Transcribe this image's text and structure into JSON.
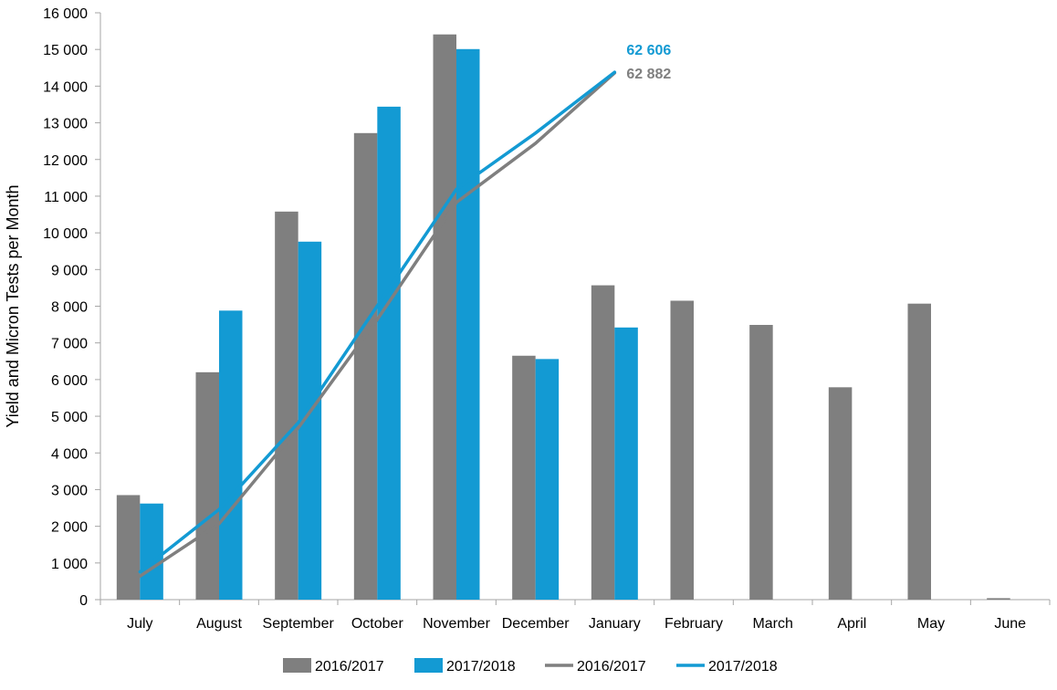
{
  "chart_data": {
    "type": "bar",
    "categories": [
      "July",
      "August",
      "September",
      "October",
      "November",
      "December",
      "January",
      "February",
      "March",
      "April",
      "May",
      "June"
    ],
    "ylabel": "Yield and Micron Tests per Month",
    "ylim": [
      0,
      16000
    ],
    "yticks": [
      0,
      1000,
      2000,
      3000,
      4000,
      5000,
      6000,
      7000,
      8000,
      9000,
      10000,
      11000,
      12000,
      13000,
      14000,
      15000,
      16000
    ],
    "ytick_labels": [
      "0",
      "1 000",
      "2 000",
      "3 000",
      "4 000",
      "5 000",
      "6 000",
      "7 000",
      "8 000",
      "9 000",
      "10 000",
      "11 000",
      "12 000",
      "13 000",
      "14 000",
      "15 000",
      "16 000"
    ],
    "grid": false,
    "legend_position": "bottom",
    "bar_series": [
      {
        "name": "2016/2017",
        "color": "#7f7f7f",
        "values": [
          2850,
          6200,
          10580,
          12720,
          15410,
          6650,
          8570,
          8150,
          7490,
          5790,
          8070,
          40
        ]
      },
      {
        "name": "2017/2018",
        "color": "#139ad3",
        "values": [
          2620,
          7880,
          9760,
          13440,
          15010,
          6560,
          7420,
          null,
          null,
          null,
          null,
          null
        ]
      }
    ],
    "line_series": [
      {
        "name": "2016/2017",
        "color": "#7f7f7f",
        "axis": "cumulative (unlabeled)",
        "values": [
          640,
          2070,
          4680,
          7640,
          10830,
          12440,
          14360
        ]
      },
      {
        "name": "2017/2018",
        "color": "#139ad3",
        "axis": "cumulative (unlabeled)",
        "values": [
          760,
          2460,
          4820,
          8010,
          11190,
          12720,
          14380
        ]
      }
    ],
    "end_labels": [
      {
        "series": "2017/2018",
        "text": "62 606",
        "color": "#139ad3"
      },
      {
        "series": "2016/2017",
        "text": "62 882",
        "color": "#7f7f7f"
      }
    ]
  }
}
